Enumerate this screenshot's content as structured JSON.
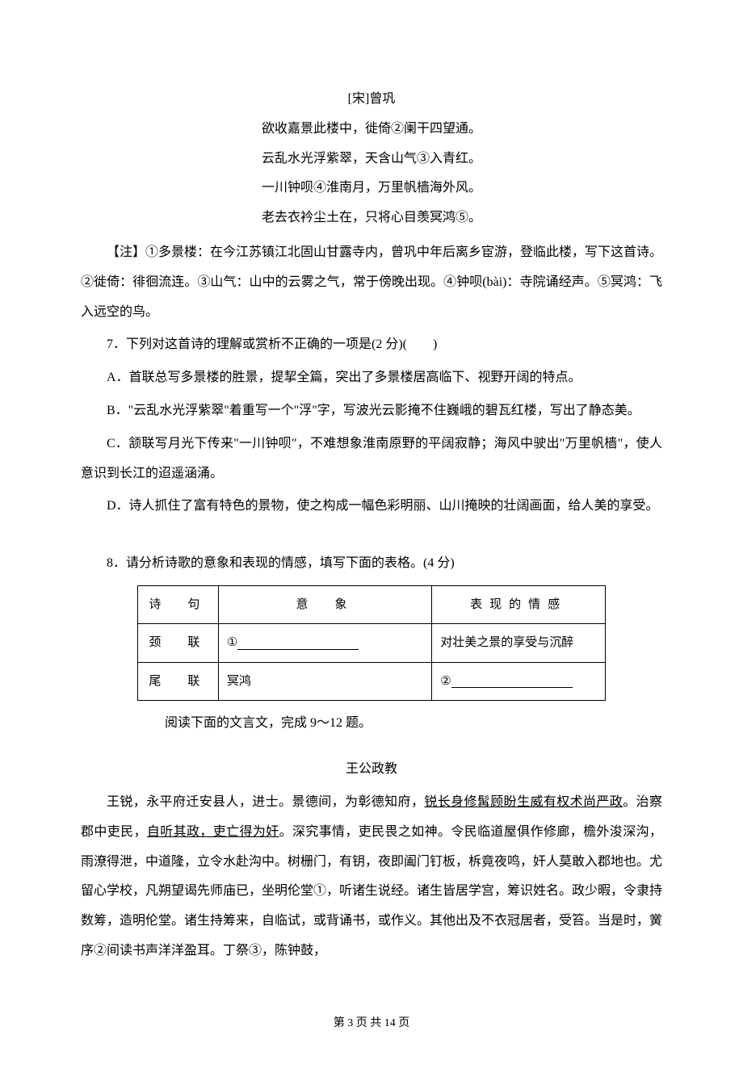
{
  "poem": {
    "author_line": "[宋]曾巩",
    "lines": [
      "欲收嘉景此楼中，徙倚②阑干四望通。",
      "云乱水光浮紫翠，天含山气③入青红。",
      "一川钟呗④淮南月，万里帆樯海外风。",
      "老去衣衿尘土在，只将心目羡冥鸿⑤。"
    ]
  },
  "notes": "【注】①多景楼：在今江苏镇江北固山甘露寺内，曾巩中年后离乡宦游，登临此楼，写下这首诗。②徙倚：徘徊流连。③山气：山中的云雾之气，常于傍晚出现。④钟呗(bài)：寺院诵经声。⑤冥鸿：飞入远空的鸟。",
  "q7": {
    "stem": "7．下列对这首诗的理解或赏析不正确的一项是(2 分)(　　)",
    "options": [
      "A．首联总写多景楼的胜景，提挈全篇，突出了多景楼居高临下、视野开阔的特点。",
      "B．\"云乱水光浮紫翠\"着重写一个\"浮\"字，写波光云影掩不住巍峨的碧瓦红楼，写出了静态美。",
      "C．颔联写月光下传来\"一川钟呗\"，不难想象淮南原野的平阔寂静；海风中驶出\"万里帆樯\"，使人意识到长江的迢遥涵涌。",
      "D．诗人抓住了富有特色的景物，使之构成一幅色彩明丽、山川掩映的壮阔画面，给人美的享受。"
    ]
  },
  "q8": {
    "stem": "8．请分析诗歌的意象和表现的情感，填写下面的表格。(4 分)",
    "headers": {
      "poem": "诗　句",
      "imagery": "意　象",
      "emotion": "表现的情感"
    },
    "rows": [
      {
        "poem": "颈　联",
        "imagery": "①",
        "emotion": "对壮美之景的享受与沉醉"
      },
      {
        "poem": "尾　联",
        "imagery": "冥鸿",
        "emotion": "②"
      }
    ]
  },
  "reading_instruction": "阅读下面的文言文，完成 9～12 题。",
  "essay": {
    "title": "王公政教",
    "p1_pre": "王锐，永平府迁安县人，进士。景德间，为彰德知府，",
    "p1_u1": "锐长身修髯顾盼生威有权术尚严",
    "p1_mid": "政",
    "p1_post1": "。治察郡中吏民，",
    "p1_u2": "自听其政，吏亡得为奸",
    "p1_post2": "。深究事情，吏民畏之如神。令民临道屋俱作修廊，檐外浚深沟，雨潦得泄，中道隆，立令水赴沟中。树栅门，有钥，夜即阖门钉板，柝竟夜鸣，奸人莫敢入郡地也。尤留心学校，凡朔望谒先师庙已，坐明伦堂①，听诸生说经。诸生皆居学宫，筹识姓名。政少暇，令隶持数筹，造明伦堂。诸生持筹来，自临试，或背诵书，或作义。其他出及不衣冠居者，受笞。当是时，黉序②间读书声洋洋盈耳。丁祭③，陈钟鼓，"
  },
  "footer": "第 3 页 共 14 页"
}
